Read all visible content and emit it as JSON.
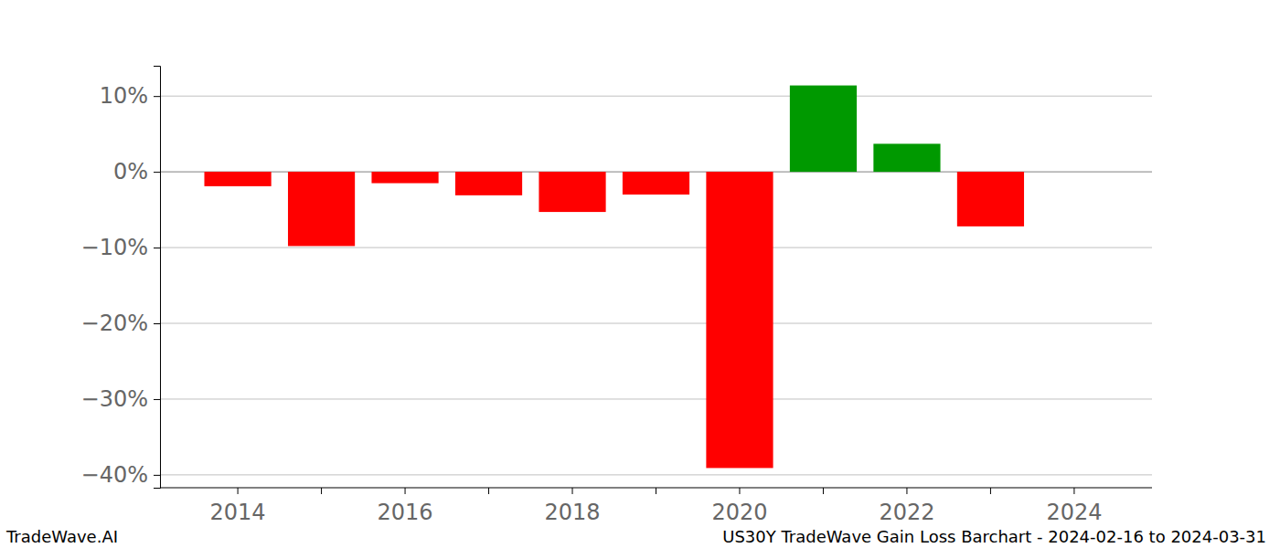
{
  "chart_data": {
    "type": "bar",
    "title": "US30Y TradeWave Gain Loss Barchart - 2024-02-16 to 2024-03-31",
    "annotations": [
      "TradeWave.AI"
    ],
    "categories": [
      "2014",
      null,
      "2016",
      null,
      "2018",
      null,
      "2020",
      null,
      "2022",
      null,
      "2024"
    ],
    "values": [
      -1.9,
      -9.8,
      -1.5,
      -3.1,
      -5.3,
      -3.0,
      -39.1,
      11.4,
      3.7,
      -7.2,
      0
    ],
    "colors": [
      "#ff0000",
      "#ff0000",
      "#ff0000",
      "#ff0000",
      "#ff0000",
      "#ff0000",
      "#ff0000",
      "#009900",
      "#009900",
      "#ff0000",
      "#ff0000"
    ],
    "ylim": [
      -41.7,
      14.0
    ],
    "yticks": [
      {
        "value": -40,
        "label": "−40%"
      },
      {
        "value": -30,
        "label": "−30%"
      },
      {
        "value": -20,
        "label": "−20%"
      },
      {
        "value": -10,
        "label": "−10%"
      },
      {
        "value": 0,
        "label": "0%"
      },
      {
        "value": 10,
        "label": "10%"
      }
    ],
    "grid": true
  }
}
